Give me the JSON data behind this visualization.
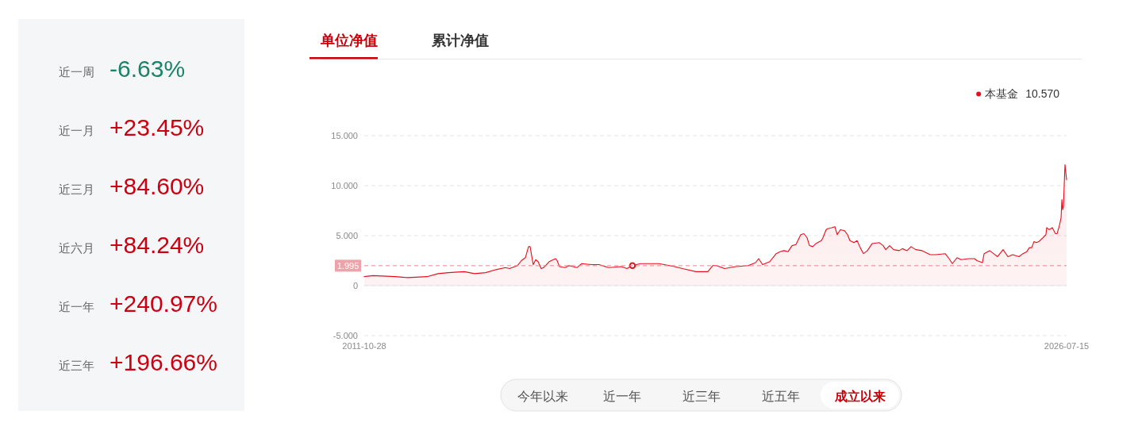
{
  "chart_data": [
    {
      "type": "other",
      "categories": [
        "近一周",
        "近一月",
        "近三月",
        "近六月",
        "近一年",
        "近三年"
      ],
      "value_labels": [
        "-6.63%",
        "+23.45%",
        "+84.60%",
        "+84.24%",
        "+240.97%",
        "+196.66%"
      ],
      "colors": [
        "#1b8468",
        "#cc0011",
        "#cc0011",
        "#cc0011",
        "#cc0011",
        "#cc0011"
      ]
    },
    {
      "type": "area",
      "x": [
        "2011-10-28",
        "2012-01-03",
        "2012-06-21",
        "2012-09-26",
        "2013-02-19",
        "2013-05-15",
        "2013-08-02",
        "2013-12-01",
        "2014-02-18",
        "2014-05-14",
        "2014-08-01",
        "2014-10-13",
        "2014-11-12",
        "2015-01-12",
        "2015-02-11",
        "2015-03-14",
        "2015-04-07",
        "2015-04-19",
        "2015-05-13",
        "2015-06-01",
        "2015-06-19",
        "2015-07-13",
        "2015-07-31",
        "2015-09-12",
        "2015-10-30",
        "2015-11-12",
        "2015-11-30",
        "2016-01-11",
        "2016-02-11",
        "2016-04-11",
        "2016-05-18",
        "2016-07-30",
        "2016-09-28",
        "2016-12-10",
        "2017-03-17",
        "2017-04-29",
        "2017-06-10",
        "2017-08-10",
        "2017-10-10",
        "2017-12-28",
        "2018-02-08",
        "2018-04-28",
        "2018-06-28",
        "2018-10-09",
        "2019-01-08",
        "2019-02-14",
        "2019-03-16",
        "2019-05-16",
        "2019-08-09",
        "2019-11-14",
        "2020-01-08",
        "2020-02-01",
        "2020-03-02",
        "2020-04-26",
        "2020-06-14",
        "2020-07-14",
        "2020-08-13",
        "2020-09-13",
        "2020-10-13",
        "2020-11-12",
        "2020-12-19",
        "2021-01-12",
        "2021-02-05",
        "2021-02-24",
        "2021-03-20",
        "2021-04-13",
        "2021-05-26",
        "2021-06-07",
        "2021-07-01",
        "2021-07-13",
        "2021-08-13",
        "2021-09-06",
        "2021-09-24",
        "2021-10-18",
        "2021-11-18",
        "2021-12-12",
        "2021-12-30",
        "2022-01-30",
        "2022-02-23",
        "2022-03-19",
        "2022-04-13",
        "2022-05-13",
        "2022-06-18",
        "2022-08-12",
        "2022-09-11",
        "2022-09-30",
        "2022-10-30",
        "2022-11-29",
        "2023-01-11",
        "2023-02-04",
        "2023-03-12",
        "2023-04-12",
        "2023-05-18",
        "2023-07-06",
        "2023-09-05",
        "2023-10-17",
        "2023-12-29",
        "2024-01-28",
        "2024-02-22",
        "2024-03-29",
        "2024-04-28",
        "2024-06-28",
        "2024-08-10",
        "2024-08-28",
        "2024-10-09",
        "2024-10-22",
        "2024-12-03",
        "2025-01-02",
        "2025-02-02",
        "2025-03-16",
        "2025-04-22",
        "2025-05-28",
        "2025-07-16",
        "2025-08-15",
        "2025-09-14",
        "2025-10-03",
        "2025-10-21",
        "2025-11-08",
        "2025-11-26",
        "2025-12-14",
        "2026-01-08",
        "2026-02-07",
        "2026-02-13",
        "2026-03-03",
        "2026-03-28",
        "2026-04-21",
        "2026-05-03",
        "2026-05-21",
        "2026-06-03",
        "2026-06-09",
        "2026-06-15",
        "2026-06-21",
        "2026-06-27",
        "2026-07-03",
        "2026-07-15"
      ],
      "series": [
        {
          "name": "本基金",
          "color": "#e60f1e",
          "values": [
            0.9,
            1.0,
            0.9,
            0.8,
            0.9,
            1.2,
            1.3,
            1.4,
            1.2,
            1.3,
            1.6,
            1.8,
            1.7,
            2.0,
            2.5,
            2.8,
            3.9,
            3.9,
            2.1,
            2.6,
            2.4,
            1.7,
            1.8,
            2.4,
            2.7,
            2.5,
            1.9,
            1.8,
            2.0,
            1.8,
            2.2,
            2.1,
            2.1,
            1.8,
            1.9,
            1.7,
            2.0,
            2.2,
            2.2,
            2.2,
            2.1,
            1.9,
            1.7,
            1.4,
            1.4,
            2.0,
            2.0,
            1.7,
            1.9,
            2.0,
            2.3,
            2.7,
            2.1,
            2.4,
            3.2,
            3.4,
            3.5,
            3.4,
            4.0,
            4.1,
            5.1,
            5.2,
            4.8,
            4.0,
            3.9,
            4.2,
            4.5,
            4.8,
            5.6,
            5.7,
            5.8,
            5.9,
            5.1,
            5.6,
            5.5,
            5.1,
            4.5,
            4.3,
            4.5,
            3.8,
            3.2,
            3.5,
            4.2,
            4.3,
            4.0,
            3.6,
            4.0,
            3.6,
            3.5,
            3.7,
            3.5,
            3.9,
            3.6,
            3.5,
            3.1,
            3.1,
            3.2,
            2.7,
            2.2,
            2.8,
            2.6,
            2.7,
            2.7,
            2.5,
            2.3,
            3.2,
            3.5,
            3.2,
            2.9,
            3.6,
            2.9,
            3.1,
            2.9,
            3.2,
            3.4,
            3.8,
            3.8,
            4.4,
            4.3,
            4.4,
            4.7,
            5.1,
            5.8,
            5.6,
            5.8,
            5.2,
            5.2,
            6.0,
            6.8,
            8.6,
            7.6,
            7.9,
            10.1,
            12.1,
            10.57
          ]
        },
        {
          "type": "scatter",
          "x": [
            "2017-06-10"
          ],
          "values": [
            2.0
          ],
          "color": "#e60f1e",
          "marker": "circle"
        }
      ],
      "xlim": [
        "2011-10-28",
        "2026-07-15"
      ],
      "ylim": [
        -5,
        15
      ],
      "xticks": [
        "2011-10-28",
        "2026-07-15"
      ],
      "yticks": [
        {
          "value": -5,
          "label": "-5.000"
        },
        0,
        {
          "value": 5,
          "label": "5.000"
        },
        {
          "value": 10,
          "label": "10.000"
        },
        {
          "value": 15,
          "label": "15.000"
        }
      ],
      "grid": "y",
      "legend": "top right",
      "ref_lines": [
        {
          "axis": "y",
          "value": 1.995,
          "label": "1.995",
          "color": "#e8848d",
          "line_style": "dashed"
        }
      ],
      "annotations": [
        "10.570",
        "单位净值",
        "累计净值",
        "今年以来",
        "近一年",
        "近三年",
        "近五年",
        "成立以来"
      ]
    }
  ]
}
